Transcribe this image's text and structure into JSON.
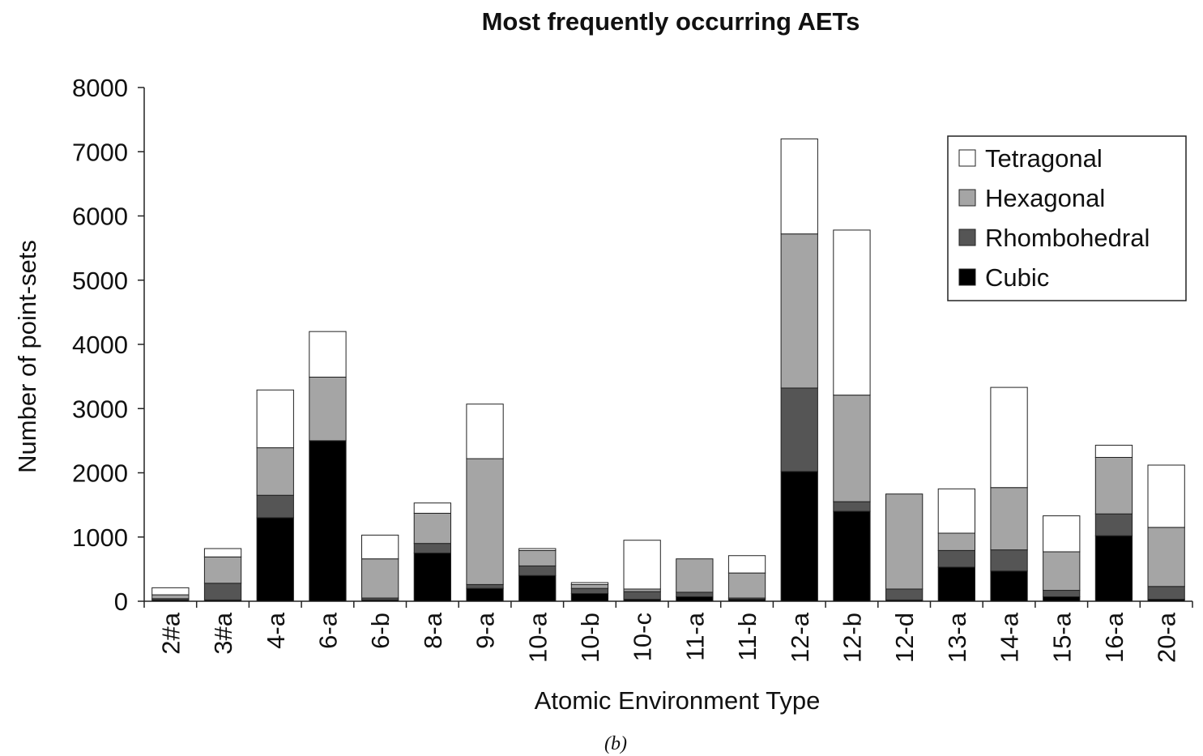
{
  "chart_data": {
    "type": "bar",
    "stacked": true,
    "title": "Most frequently occurring AETs",
    "xlabel": "Atomic Environment Type",
    "ylabel": "Number of point-sets",
    "caption": "(b)",
    "ylim": [
      0,
      8000
    ],
    "yticks": [
      "0",
      "1000",
      "2000",
      "3000",
      "4000",
      "5000",
      "6000",
      "7000",
      "8000"
    ],
    "categories": [
      "2#a",
      "3#a",
      "4-a",
      "6-a",
      "6-b",
      "8-a",
      "9-a",
      "10-a",
      "10-b",
      "10-c",
      "11-a",
      "11-b",
      "12-a",
      "12-b",
      "12-d",
      "13-a",
      "14-a",
      "15-a",
      "16-a",
      "20-a"
    ],
    "series": [
      {
        "name": "Cubic",
        "color": "#000000",
        "values": [
          20,
          20,
          1300,
          2500,
          20,
          750,
          200,
          400,
          120,
          30,
          70,
          30,
          2020,
          1400,
          20,
          530,
          470,
          70,
          1020,
          30
        ]
      },
      {
        "name": "Rhombohedral",
        "color": "#555555",
        "values": [
          20,
          260,
          350,
          0,
          30,
          150,
          60,
          150,
          80,
          120,
          70,
          20,
          1300,
          150,
          170,
          260,
          330,
          100,
          340,
          200
        ]
      },
      {
        "name": "Hexagonal",
        "color": "#a5a5a5",
        "values": [
          60,
          410,
          740,
          990,
          610,
          470,
          1960,
          240,
          60,
          40,
          520,
          390,
          2400,
          1660,
          1480,
          270,
          970,
          600,
          880,
          920
        ]
      },
      {
        "name": "Tetragonal",
        "color": "#ffffff",
        "values": [
          110,
          130,
          900,
          710,
          370,
          160,
          850,
          30,
          30,
          760,
          0,
          270,
          1480,
          2570,
          0,
          690,
          1560,
          560,
          190,
          970
        ]
      }
    ],
    "legend": {
      "placement": "top-right",
      "order": [
        "Tetragonal",
        "Hexagonal",
        "Rhombohedral",
        "Cubic"
      ]
    },
    "grid": false
  }
}
